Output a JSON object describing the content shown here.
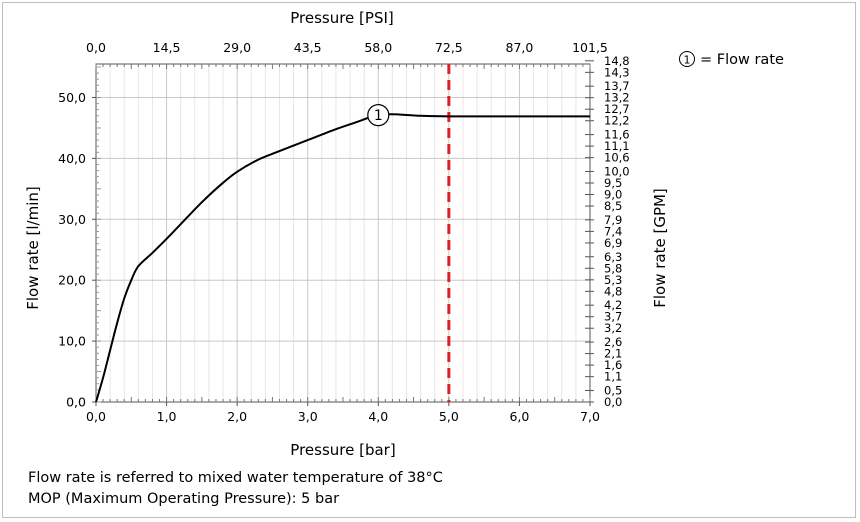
{
  "chart_data": {
    "type": "line",
    "title": "",
    "xlabel": "Pressure [bar]",
    "x_top_label": "Pressure [PSI]",
    "ylabel": "Flow rate [l/min]",
    "y_right_label": "Flow rate [GPM]",
    "xlim": [
      0,
      7
    ],
    "ylim": [
      0,
      55.5
    ],
    "x_ticks": [
      "0,0",
      "1,0",
      "2,0",
      "3,0",
      "4,0",
      "5,0",
      "6,0",
      "7,0"
    ],
    "x_top_ticks": [
      "0,0",
      "14,5",
      "29,0",
      "43,5",
      "58,0",
      "72,5",
      "87,0",
      "101,5"
    ],
    "y_ticks": [
      "0,0",
      "10,0",
      "20,0",
      "30,0",
      "40,0",
      "50,0"
    ],
    "y_right_ticks": [
      "0,0",
      "0,5",
      "1,1",
      "1,6",
      "2,1",
      "2,6",
      "3,2",
      "3,7",
      "4,2",
      "4,8",
      "5,3",
      "5,8",
      "6,3",
      "6,9",
      "7,4",
      "7,9",
      "8,5",
      "9,0",
      "9,5",
      "10,0",
      "10,6",
      "11,1",
      "11,6",
      "12,2",
      "12,7",
      "13,2",
      "13,7",
      "14,3",
      "14,8"
    ],
    "grid": true,
    "series": [
      {
        "name": "Flow rate",
        "marker_label": "1",
        "color": "#000000",
        "x": [
          0,
          0.1,
          0.2,
          0.3,
          0.4,
          0.5,
          0.6,
          0.8,
          1.0,
          1.2,
          1.5,
          1.8,
          2.0,
          2.3,
          2.6,
          3.0,
          3.4,
          3.7,
          3.9,
          4.1,
          4.3,
          4.6,
          5.0,
          5.5,
          6.0,
          6.5,
          7.0
        ],
        "y": [
          0,
          4,
          8.5,
          13,
          17,
          20,
          22.3,
          24.5,
          26.8,
          29.2,
          32.8,
          36,
          37.8,
          39.8,
          41.2,
          43,
          44.8,
          46,
          46.8,
          47.2,
          47.2,
          47.0,
          46.9,
          46.9,
          46.9,
          46.9,
          46.9
        ]
      }
    ],
    "reference_line": {
      "x": 5.0,
      "color": "#e02020",
      "style": "dashed"
    }
  },
  "legend": {
    "marker": "1",
    "text": "= Flow rate"
  },
  "notes": [
    "Flow rate is referred to mixed water temperature of 38°C",
    "MOP (Maximum Operating Pressure): 5 bar"
  ]
}
